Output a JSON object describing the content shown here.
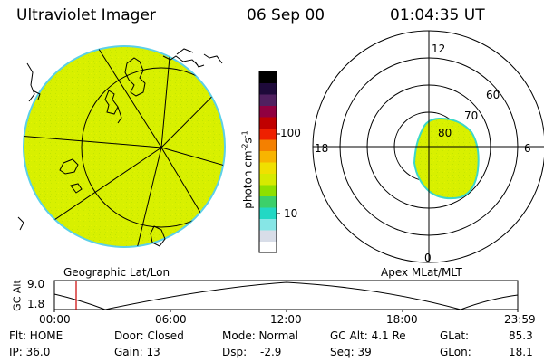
{
  "header": {
    "title": "Ultraviolet Imager",
    "date": "06 Sep 00",
    "time": "01:04:35 UT"
  },
  "colorbar": {
    "label": "photon cm",
    "label_sup1": "-2",
    "label_mid": "s",
    "label_sup2": "-1",
    "ticks": [
      "100",
      "10"
    ],
    "tick_values": [
      100,
      10
    ],
    "range": [
      2.5,
      400
    ],
    "scale": "log",
    "colors": [
      "#ffffff",
      "#d8dde8",
      "#86e6e6",
      "#22d8c4",
      "#3cd06a",
      "#8ee000",
      "#d6ea00",
      "#f0e000",
      "#f8b400",
      "#f48000",
      "#ee2000",
      "#c00000",
      "#900040",
      "#502060",
      "#1e0a3a",
      "#000000"
    ]
  },
  "geo_panel": {
    "caption": "Geographic Lat/Lon",
    "fill_color": "#d8f000"
  },
  "polar_panel": {
    "caption": "Apex MLat/MLT",
    "mlt_labels": [
      "12",
      "18",
      "6",
      "0"
    ],
    "lat_labels": [
      "60",
      "70",
      "80"
    ],
    "fill_color": "#d8f000",
    "edge_color": "#3cd8c8"
  },
  "altitude_plot": {
    "ylabel": "GC Alt",
    "yticks": [
      "9.0",
      "1.8"
    ],
    "xticks": [
      "00:00",
      "06:00",
      "12:00",
      "18:00",
      "23:59"
    ],
    "marker_color": "#cc0000"
  },
  "info": {
    "flt": "Flt: HOME",
    "ip": "IP: 36.0",
    "door": "Door: Closed",
    "gain": "Gain: 13",
    "mode": "Mode: Normal",
    "dsp": "Dsp:",
    "dsp_value": "-2.9",
    "gcalt": "GC Alt: 4.1 Re",
    "seq": "Seq: 39",
    "glat": "GLat:",
    "glat_value": "85.3",
    "glon": "GLon:",
    "glon_value": "18.1"
  }
}
